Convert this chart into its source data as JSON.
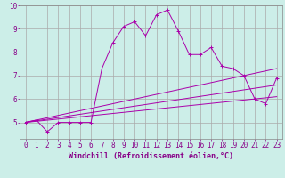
{
  "bg_color": "#cceee8",
  "grid_color": "#aaaaaa",
  "line_color": "#aa00aa",
  "marker_color": "#aa00aa",
  "xlabel": "Windchill (Refroidissement éolien,°C)",
  "xlim": [
    -0.5,
    23.5
  ],
  "ylim": [
    4.3,
    10.0
  ],
  "xticks": [
    0,
    1,
    2,
    3,
    4,
    5,
    6,
    7,
    8,
    9,
    10,
    11,
    12,
    13,
    14,
    15,
    16,
    17,
    18,
    19,
    20,
    21,
    22,
    23
  ],
  "yticks": [
    5,
    6,
    7,
    8,
    9,
    10
  ],
  "main_x": [
    0,
    1,
    2,
    3,
    4,
    5,
    6,
    7,
    8,
    9,
    10,
    11,
    12,
    13,
    14,
    15,
    16,
    17,
    18,
    19,
    20,
    21,
    22,
    23
  ],
  "main_y": [
    5.0,
    5.1,
    4.6,
    5.0,
    5.0,
    5.0,
    5.0,
    7.3,
    8.4,
    9.1,
    9.3,
    8.7,
    9.6,
    9.8,
    8.9,
    7.9,
    7.9,
    8.2,
    7.4,
    7.3,
    7.0,
    6.0,
    5.8,
    6.9
  ],
  "line1_x": [
    0,
    23
  ],
  "line1_y": [
    5.0,
    7.3
  ],
  "line2_x": [
    0,
    23
  ],
  "line2_y": [
    5.0,
    6.6
  ],
  "line3_x": [
    0,
    23
  ],
  "line3_y": [
    5.0,
    6.1
  ],
  "font_color": "#880088",
  "xlabel_fontsize": 6.0,
  "tick_fontsize": 5.5
}
